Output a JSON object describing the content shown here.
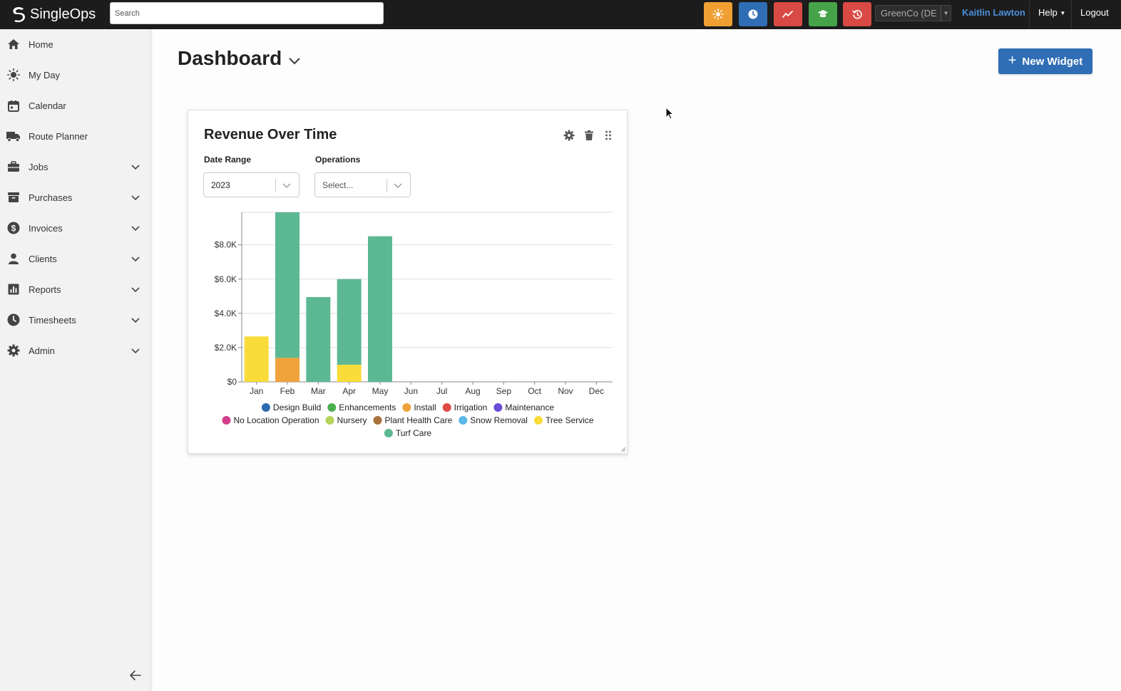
{
  "header": {
    "logo_text": "SingleOps",
    "search_placeholder": "Search",
    "company_selector": "GreenCo (DE",
    "user_name": "Kaitlin Lawton",
    "help_label": "Help",
    "logout_label": "Logout",
    "quick_buttons": [
      {
        "icon": "sun-icon",
        "color": "#f0a033"
      },
      {
        "icon": "clock-icon",
        "color": "#2f6db5"
      },
      {
        "icon": "trend-icon",
        "color": "#d94a44"
      },
      {
        "icon": "graduation-cap-icon",
        "color": "#46a34a"
      },
      {
        "icon": "history-icon",
        "color": "#d94a44"
      }
    ]
  },
  "sidebar": {
    "items": [
      {
        "label": "Home",
        "icon": "home-icon",
        "expandable": false
      },
      {
        "label": "My Day",
        "icon": "sun-icon",
        "expandable": false
      },
      {
        "label": "Calendar",
        "icon": "calendar-icon",
        "expandable": false
      },
      {
        "label": "Route Planner",
        "icon": "truck-icon",
        "expandable": false
      },
      {
        "label": "Jobs",
        "icon": "briefcase-icon",
        "expandable": true
      },
      {
        "label": "Purchases",
        "icon": "archive-icon",
        "expandable": true
      },
      {
        "label": "Invoices",
        "icon": "dollar-icon",
        "expandable": true
      },
      {
        "label": "Clients",
        "icon": "user-icon",
        "expandable": true
      },
      {
        "label": "Reports",
        "icon": "bar-chart-icon",
        "expandable": true
      },
      {
        "label": "Timesheets",
        "icon": "clock-icon",
        "expandable": true
      },
      {
        "label": "Admin",
        "icon": "gear-icon",
        "expandable": true
      }
    ]
  },
  "main": {
    "title": "Dashboard",
    "new_widget_label": "New Widget"
  },
  "widget": {
    "title": "Revenue Over Time",
    "date_range_label": "Date Range",
    "date_range_value": "2023",
    "operations_label": "Operations",
    "operations_placeholder": "Select..."
  },
  "chart_data": {
    "type": "bar",
    "stacked": true,
    "categories": [
      "Jan",
      "Feb",
      "Mar",
      "Apr",
      "May",
      "Jun",
      "Jul",
      "Aug",
      "Sep",
      "Oct",
      "Nov",
      "Dec"
    ],
    "ylim": [
      0,
      9900
    ],
    "yticks": [
      0,
      2000,
      4000,
      6000,
      8000
    ],
    "ytick_labels": [
      "$0",
      "$2.0K",
      "$4.0K",
      "$6.0K",
      "$8.0K"
    ],
    "grid": true,
    "legend_position": "bottom",
    "series": [
      {
        "name": "Design Build",
        "color": "#2d6cb0",
        "values": [
          0,
          0,
          0,
          0,
          0,
          0,
          0,
          0,
          0,
          0,
          0,
          0
        ]
      },
      {
        "name": "Enhancements",
        "color": "#4caf50",
        "values": [
          0,
          0,
          0,
          0,
          0,
          0,
          0,
          0,
          0,
          0,
          0,
          0
        ]
      },
      {
        "name": "Install",
        "color": "#f0a33a",
        "values": [
          0,
          1400,
          0,
          0,
          0,
          0,
          0,
          0,
          0,
          0,
          0,
          0
        ]
      },
      {
        "name": "Irrigation",
        "color": "#de4c45",
        "values": [
          0,
          0,
          0,
          0,
          0,
          0,
          0,
          0,
          0,
          0,
          0,
          0
        ]
      },
      {
        "name": "Maintenance",
        "color": "#6a4fd6",
        "values": [
          0,
          0,
          0,
          0,
          0,
          0,
          0,
          0,
          0,
          0,
          0,
          0
        ]
      },
      {
        "name": "No Location Operation",
        "color": "#d43f8d",
        "values": [
          0,
          0,
          0,
          0,
          0,
          0,
          0,
          0,
          0,
          0,
          0,
          0
        ]
      },
      {
        "name": "Nursery",
        "color": "#b5d45a",
        "values": [
          0,
          0,
          0,
          0,
          0,
          0,
          0,
          0,
          0,
          0,
          0,
          0
        ]
      },
      {
        "name": "Plant Health Care",
        "color": "#a9713b",
        "values": [
          0,
          0,
          0,
          0,
          0,
          0,
          0,
          0,
          0,
          0,
          0,
          0
        ]
      },
      {
        "name": "Snow Removal",
        "color": "#5ab8e6",
        "values": [
          0,
          0,
          0,
          0,
          0,
          0,
          0,
          0,
          0,
          0,
          0,
          0
        ]
      },
      {
        "name": "Tree Service",
        "color": "#f9dc3a",
        "values": [
          2650,
          0,
          0,
          1000,
          0,
          0,
          0,
          0,
          0,
          0,
          0,
          0
        ]
      },
      {
        "name": "Turf Care",
        "color": "#5cb893",
        "values": [
          0,
          8500,
          4950,
          5000,
          8500,
          0,
          0,
          0,
          0,
          0,
          0,
          0
        ]
      }
    ]
  }
}
